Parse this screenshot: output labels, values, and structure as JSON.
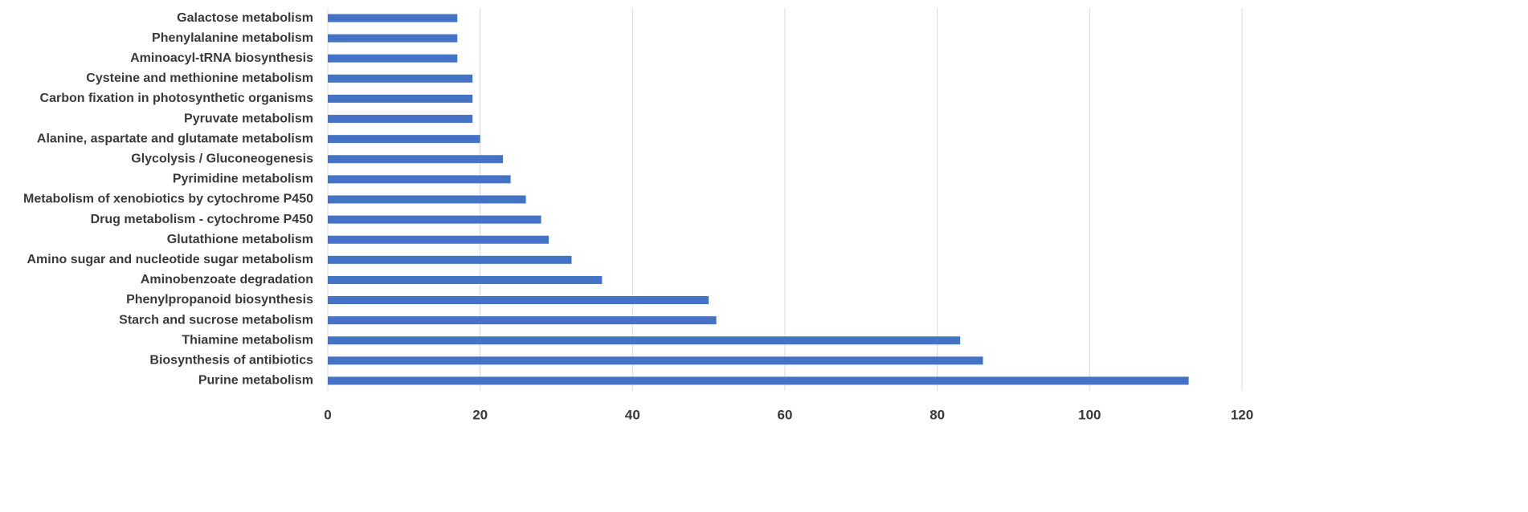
{
  "chart_data": {
    "type": "bar",
    "orientation": "horizontal",
    "categories": [
      "Galactose metabolism",
      "Phenylalanine metabolism",
      "Aminoacyl-tRNA biosynthesis",
      "Cysteine and methionine metabolism",
      "Carbon fixation in photosynthetic organisms",
      "Pyruvate metabolism",
      "Alanine, aspartate and glutamate metabolism",
      "Glycolysis / Gluconeogenesis",
      "Pyrimidine metabolism",
      "Metabolism of xenobiotics by cytochrome P450",
      "Drug metabolism - cytochrome P450",
      "Glutathione metabolism",
      "Amino sugar and nucleotide sugar metabolism",
      "Aminobenzoate degradation",
      "Phenylpropanoid biosynthesis",
      "Starch and sucrose metabolism",
      "Thiamine metabolism",
      "Biosynthesis of antibiotics",
      "Purine metabolism"
    ],
    "values": [
      17,
      17,
      17,
      19,
      19,
      19,
      20,
      23,
      24,
      26,
      28,
      29,
      32,
      36,
      50,
      51,
      83,
      86,
      113
    ],
    "color": "#4472c4",
    "xlim": [
      0,
      120
    ],
    "xticks": [
      0,
      20,
      40,
      60,
      80,
      100,
      120
    ],
    "grid": true
  }
}
